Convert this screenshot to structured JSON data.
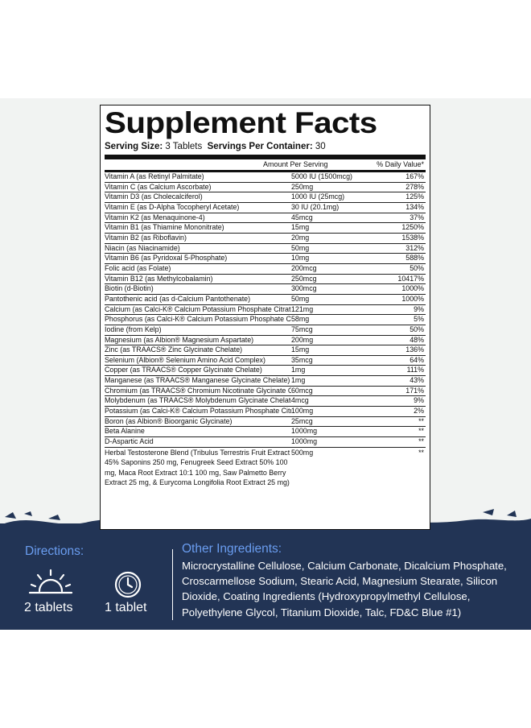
{
  "facts": {
    "title": "Supplement Facts",
    "serving_size_label": "Serving Size:",
    "serving_size_value": "3 Tablets",
    "servings_label": "Servings Per Container:",
    "servings_value": "30",
    "col_amount": "Amount Per Serving",
    "col_dv": "% Daily Value*",
    "rows": [
      {
        "name": "Vitamin A (as Retinyl Palmitate)",
        "amount": "5000 IU (1500mcg)",
        "dv": "167%"
      },
      {
        "name": "Vitamin C (as Calcium Ascorbate)",
        "amount": "250mg",
        "dv": "278%"
      },
      {
        "name": "Vitamin D3 (as Cholecalciferol)",
        "amount": "1000 IU (25mcg)",
        "dv": "125%"
      },
      {
        "name": "Vitamin E (as D-Alpha Tocopheryl Acetate)",
        "amount": "30 IU (20.1mg)",
        "dv": "134%"
      },
      {
        "name": "Vitamin K2 (as Menaquinone-4)",
        "amount": "45mcg",
        "dv": "37%"
      },
      {
        "name": "Vitamin B1 (as Thiamine Mononitrate)",
        "amount": "15mg",
        "dv": "1250%"
      },
      {
        "name": "Vitamin B2 (as Riboflavin)",
        "amount": "20mg",
        "dv": "1538%"
      },
      {
        "name": "Niacin (as Niacinamide)",
        "amount": "50mg",
        "dv": "312%"
      },
      {
        "name": "Vitamin B6 (as Pyridoxal 5-Phosphate)",
        "amount": "10mg",
        "dv": "588%"
      },
      {
        "name": "Folic acid (as Folate)",
        "amount": "200mcg",
        "dv": "50%"
      },
      {
        "name": "Vitamin B12 (as Methylcobalamin)",
        "amount": "250mcg",
        "dv": "10417%"
      },
      {
        "name": "Biotin (d-Biotin)",
        "amount": "300mcg",
        "dv": "1000%"
      },
      {
        "name": "Pantothenic acid (as d-Calcium Pantothenate)",
        "amount": "50mg",
        "dv": "1000%"
      },
      {
        "name": "Calcium (as Calci-K® Calcium Potassium Phosphate Citrate)",
        "amount": "121mg",
        "dv": "9%"
      },
      {
        "name": "Phosphorus (as Calci-K® Calcium Potassium Phosphate Citrate)",
        "amount": "58mg",
        "dv": "5%"
      },
      {
        "name": "Iodine (from Kelp)",
        "amount": "75mcg",
        "dv": "50%"
      },
      {
        "name": "Magnesium (as Albion® Magnesium Aspartate)",
        "amount": "200mg",
        "dv": "48%"
      },
      {
        "name": "Zinc (as TRAACS® Zinc Glycinate Chelate)",
        "amount": "15mg",
        "dv": "136%"
      },
      {
        "name": "Selenium (Albion® Selenium Amino Acid Complex)",
        "amount": "35mcg",
        "dv": "64%"
      },
      {
        "name": "Copper (as TRAACS® Copper Glycinate Chelate)",
        "amount": "1mg",
        "dv": "111%"
      },
      {
        "name": "Manganese (as TRAACS® Manganese Glycinate Chelate)",
        "amount": "1mg",
        "dv": "43%"
      },
      {
        "name": "Chromium (as TRAACS® Chromium Nicotinate Glycinate Chelate)",
        "amount": "60mcg",
        "dv": "171%"
      },
      {
        "name": "Molybdenum (as TRAACS® Molybdenum Glycinate Chelate)",
        "amount": "4mcg",
        "dv": "9%"
      },
      {
        "name": "Potassium (as Calci-K® Calcium Potassium Phosphate Citrate)",
        "amount": "100mg",
        "dv": "2%"
      },
      {
        "name": "Boron (as Albion® Bioorganic Glycinate)",
        "amount": "25mcg",
        "dv": "**"
      },
      {
        "name": "Beta Alanine",
        "amount": "1000mg",
        "dv": "**"
      },
      {
        "name": "D-Aspartic Acid",
        "amount": "1000mg",
        "dv": "**"
      }
    ],
    "herbal": {
      "name": "Herbal Testosterone Blend (Tribulus Terrestris Fruit Extract 45% Saponins 250 mg, Fenugreek Seed Extract 50% 100 mg, Maca Root Extract 10:1 100 mg, Saw Palmetto Berry Extract 25 mg, & Eurycoma Longifolia Root Extract 25 mg)",
      "amount": "500mg",
      "dv": "**"
    }
  },
  "directions": {
    "title": "Directions:",
    "morning_dose": "2 tablets",
    "clock_dose": "1 tablet",
    "sun_icon": "sunrise-icon",
    "clock_icon": "clock-icon"
  },
  "other_ingredients": {
    "title": "Other Ingredients:",
    "text": "Microcrystalline Cellulose, Calcium Carbonate, Dicalcium Phosphate, Croscarmellose Sodium, Stearic Acid, Magnesium Stearate, Silicon Dioxide, Coating Ingredients (Hydroxypropylmethyl Cellulose, Polyethylene Glycol, Titanium Dioxide, Talc, FD&C Blue #1)"
  },
  "colors": {
    "navy": "#223455",
    "accent_blue": "#6a9df0"
  }
}
